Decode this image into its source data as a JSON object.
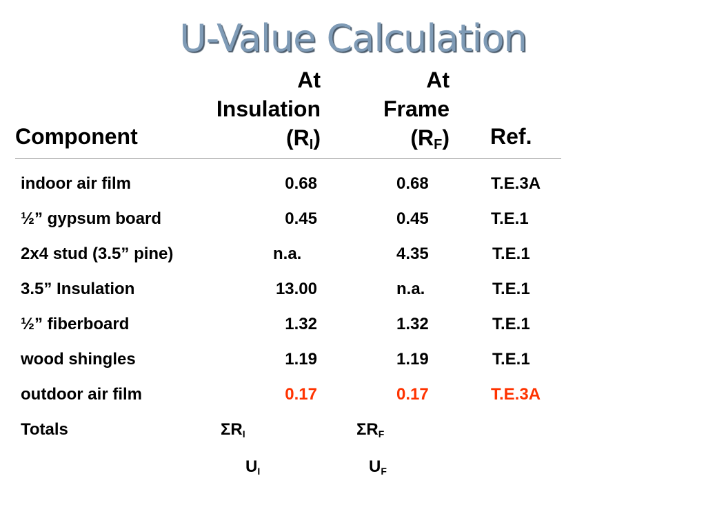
{
  "title": "U-Value Calculation",
  "header": {
    "component": "Component",
    "insulation_line1": "At",
    "insulation_line2": "Insulation",
    "insulation_r": "(R",
    "insulation_sub": "I",
    "insulation_close": ")",
    "frame_line1": "At",
    "frame_line2": "Frame",
    "frame_r": "(R",
    "frame_sub": "F",
    "frame_close": ")",
    "ref": "Ref."
  },
  "rows": [
    {
      "component": "indoor air film",
      "insulation": "0.68",
      "frame": "0.68",
      "ref": "T.E.3A"
    },
    {
      "component": "½” gypsum board",
      "insulation": "0.45",
      "frame": "0.45",
      "ref": "T.E.1"
    },
    {
      "component": "2x4 stud (3.5” pine)",
      "insulation": "n.a.",
      "frame": "4.35",
      "ref": "T.E.1"
    },
    {
      "component": "3.5” Insulation",
      "insulation": "13.00",
      "frame": "n.a.",
      "ref": "T.E.1"
    },
    {
      "component": "½” fiberboard",
      "insulation": "1.32",
      "frame": "1.32",
      "ref": "T.E.1"
    },
    {
      "component": "wood shingles",
      "insulation": "1.19",
      "frame": "1.19",
      "ref": "T.E.1"
    },
    {
      "component": "outdoor air film",
      "insulation": "0.17",
      "frame": "0.17",
      "ref": "T.E.3A"
    }
  ],
  "totals": {
    "label": "Totals",
    "sum_insulation": "ΣR",
    "sum_insulation_sub": "I",
    "sum_frame": "ΣR",
    "sum_frame_sub": "F",
    "u_insulation": "U",
    "u_insulation_sub": "I",
    "u_frame": "U",
    "u_frame_sub": "F"
  },
  "colors": {
    "title": "#7f9bb6",
    "highlight": "#ff3300"
  }
}
